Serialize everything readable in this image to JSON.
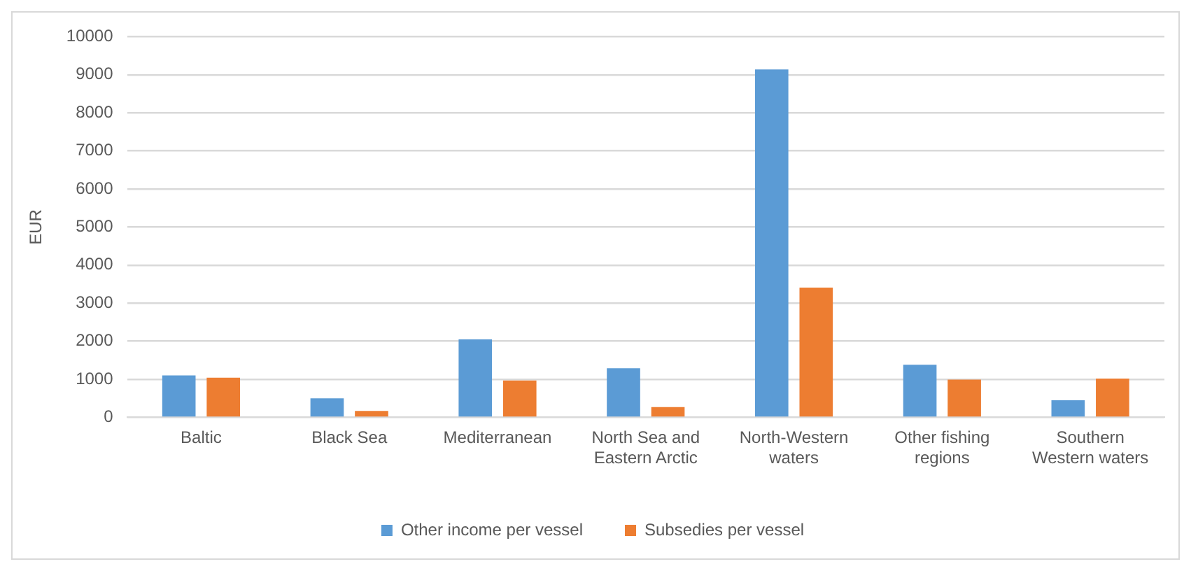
{
  "chart_data": {
    "type": "bar",
    "ylabel": "EUR",
    "categories": [
      "Baltic",
      "Black Sea",
      "Mediterranean",
      "North Sea and Eastern Arctic",
      "North-Western waters",
      "Other fishing regions",
      "Southern Western waters"
    ],
    "series": [
      {
        "name": "Other income per vessel",
        "color": "#5b9bd5",
        "values": [
          1100,
          500,
          2050,
          1290,
          9140,
          1380,
          450
        ]
      },
      {
        "name": "Subsedies per vessel",
        "color": "#ed7d31",
        "values": [
          1040,
          170,
          970,
          270,
          3410,
          990,
          1020
        ]
      }
    ],
    "ylim": [
      0,
      10000
    ],
    "yticks": [
      0,
      1000,
      2000,
      3000,
      4000,
      5000,
      6000,
      7000,
      8000,
      9000,
      10000
    ],
    "grid": "y",
    "legend": "bottom"
  }
}
